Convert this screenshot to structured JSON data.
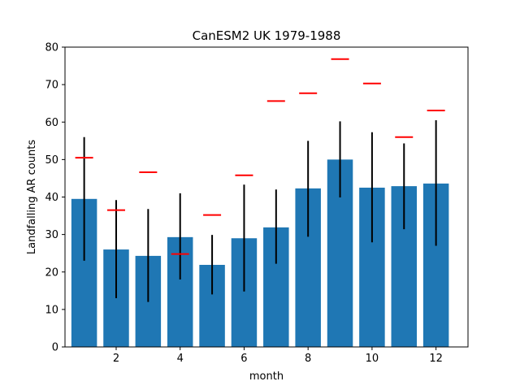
{
  "chart_data": {
    "type": "bar",
    "title": "CanESM2 UK 1979-1988",
    "xlabel": "month",
    "ylabel": "Landfalling AR counts",
    "x": [
      1,
      2,
      3,
      4,
      5,
      6,
      7,
      8,
      9,
      10,
      11,
      12
    ],
    "xlim": [
      0.4,
      13.0
    ],
    "ylim": [
      0,
      80
    ],
    "xticks": [
      2,
      4,
      6,
      8,
      10,
      12
    ],
    "yticks": [
      0,
      10,
      20,
      30,
      40,
      50,
      60,
      70,
      80
    ],
    "grid": false,
    "series": [
      {
        "values": [
          39.5,
          26.0,
          24.3,
          29.3,
          21.9,
          29.0,
          31.9,
          42.3,
          50.0,
          42.5,
          42.9,
          43.6
        ],
        "error_low": [
          23.0,
          13.0,
          12.0,
          18.0,
          14.0,
          14.8,
          22.2,
          29.4,
          39.9,
          27.9,
          31.4,
          27.0
        ],
        "error_high": [
          56.0,
          39.2,
          36.8,
          41.0,
          29.9,
          43.3,
          42.0,
          55.0,
          60.2,
          57.3,
          54.3,
          60.5
        ],
        "color": "#1f77b4",
        "error_color": "#000000"
      },
      {
        "values": [
          50.5,
          36.5,
          46.6,
          24.8,
          35.2,
          45.8,
          65.6,
          67.7,
          76.8,
          70.3,
          56.0,
          63.1
        ],
        "marker": "hline",
        "color": "#ff0000"
      }
    ]
  }
}
